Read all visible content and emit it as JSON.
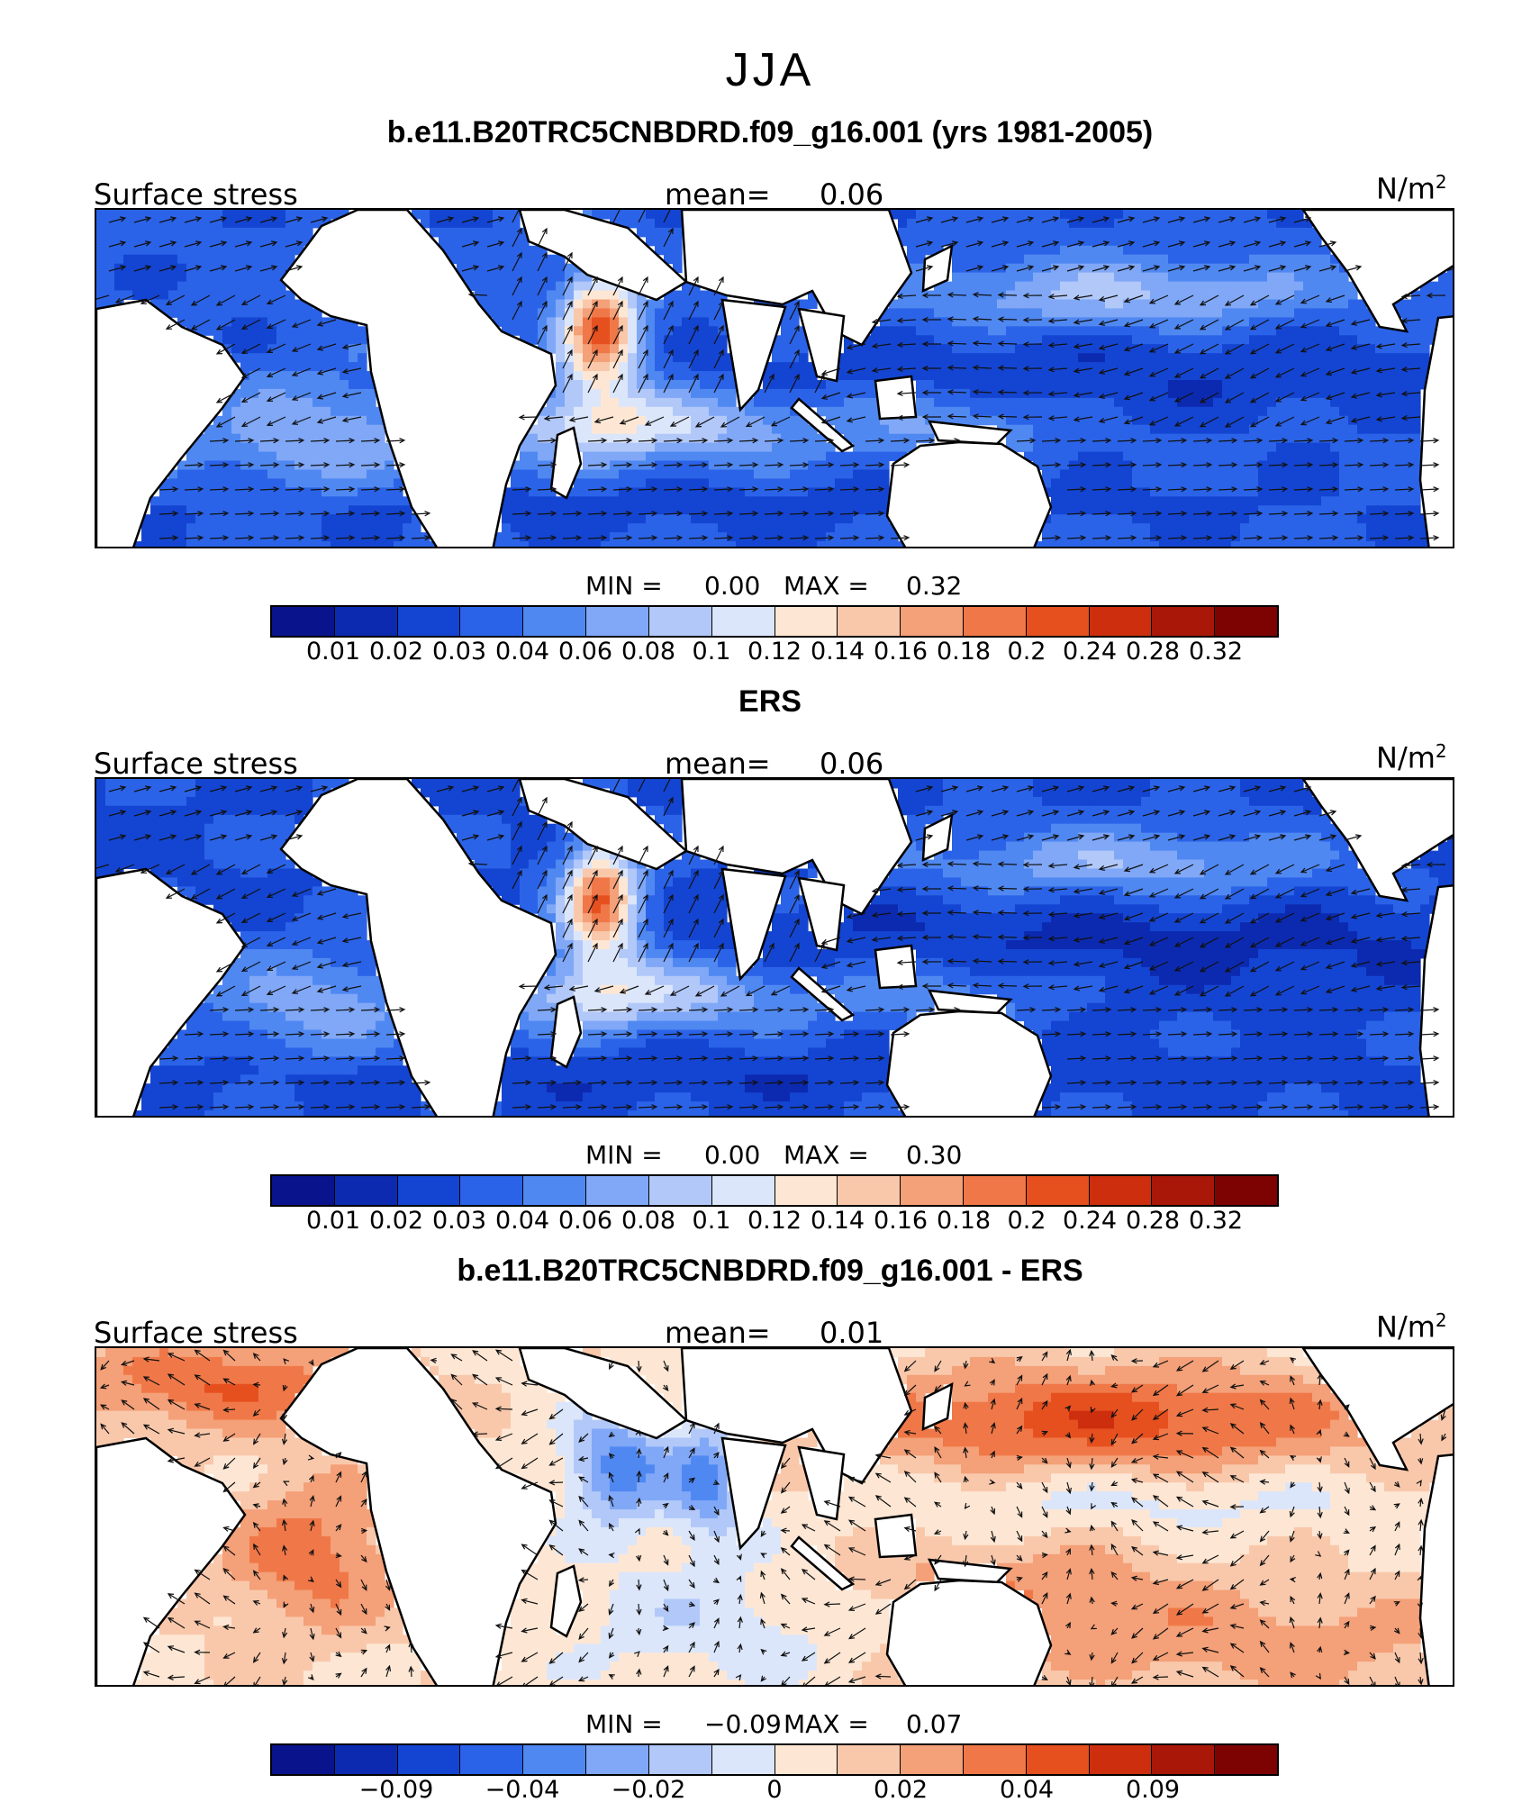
{
  "figure_title": "JJA",
  "colors": {
    "map_fill": [
      "#08138c",
      "#0c2ab0",
      "#1445d2",
      "#2b63e8",
      "#5088f2",
      "#80a8f7",
      "#b1c8f9",
      "#dbe6fb",
      "#fde7d4",
      "#f9c8ab",
      "#f4a078",
      "#f07848",
      "#e6501f",
      "#cd2f0e",
      "#a81708",
      "#7d0303"
    ],
    "land": "#ffffff",
    "coast": "#000000"
  },
  "panels": [
    {
      "title": "b.e11.B20TRC5CNBDRD.f09_g16.001 (yrs 1981-2005)",
      "variable": "Surface stress",
      "mean_label": "mean=",
      "mean": "0.06",
      "units": "N/m",
      "units_exp": "2",
      "min_label": "MIN =",
      "min": "0.00",
      "max_label": "MAX =",
      "max": "0.32",
      "colorbar_ticks": [
        "0.01",
        "0.02",
        "0.03",
        "0.04",
        "0.06",
        "0.08",
        "0.1",
        "0.12",
        "0.14",
        "0.16",
        "0.18",
        "0.2",
        "0.24",
        "0.28",
        "0.32"
      ],
      "colorbar_tick_positions": [
        1,
        2,
        3,
        4,
        5,
        6,
        7,
        8,
        9,
        10,
        11,
        12,
        13,
        14,
        15
      ],
      "field": "model"
    },
    {
      "title": "ERS",
      "variable": "Surface stress",
      "mean_label": "mean=",
      "mean": "0.06",
      "units": "N/m",
      "units_exp": "2",
      "min_label": "MIN =",
      "min": "0.00",
      "max_label": "MAX =",
      "max": "0.30",
      "colorbar_ticks": [
        "0.01",
        "0.02",
        "0.03",
        "0.04",
        "0.06",
        "0.08",
        "0.1",
        "0.12",
        "0.14",
        "0.16",
        "0.18",
        "0.2",
        "0.24",
        "0.28",
        "0.32"
      ],
      "colorbar_tick_positions": [
        1,
        2,
        3,
        4,
        5,
        6,
        7,
        8,
        9,
        10,
        11,
        12,
        13,
        14,
        15
      ],
      "field": "obs"
    },
    {
      "title": "b.e11.B20TRC5CNBDRD.f09_g16.001 - ERS",
      "variable": "Surface stress",
      "mean_label": "mean=",
      "mean": "0.01",
      "units": "N/m",
      "units_exp": "2",
      "min_label": "MIN =",
      "min": "−0.09",
      "max_label": "MAX =",
      "max": "0.07",
      "colorbar_ticks": [
        "−0.09",
        "−0.04",
        "−0.02",
        "0",
        "0.02",
        "0.04",
        "0.09"
      ],
      "colorbar_tick_positions": [
        2,
        4,
        6,
        8,
        10,
        12,
        14
      ],
      "field": "diff"
    }
  ]
}
